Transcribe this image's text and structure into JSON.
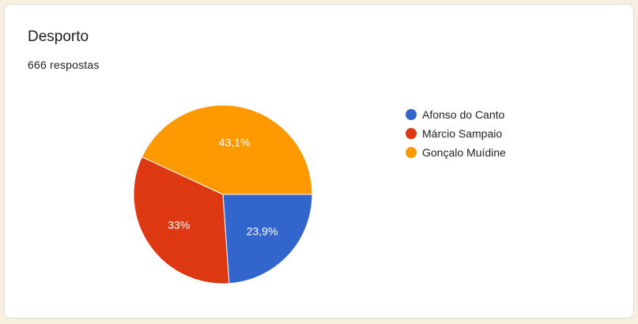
{
  "title": "Desporto",
  "responses": "666 respostas",
  "chart_data": {
    "type": "pie",
    "title": "",
    "categories": [
      "Afonso do Canto",
      "Márcio Sampaio",
      "Gonçalo Muídine"
    ],
    "values": [
      23.9,
      33,
      43.1
    ],
    "labels": [
      "23,9%",
      "33%",
      "43,1%"
    ],
    "colors": [
      "#3366cc",
      "#dc3912",
      "#ff9900"
    ],
    "legend": "right"
  }
}
